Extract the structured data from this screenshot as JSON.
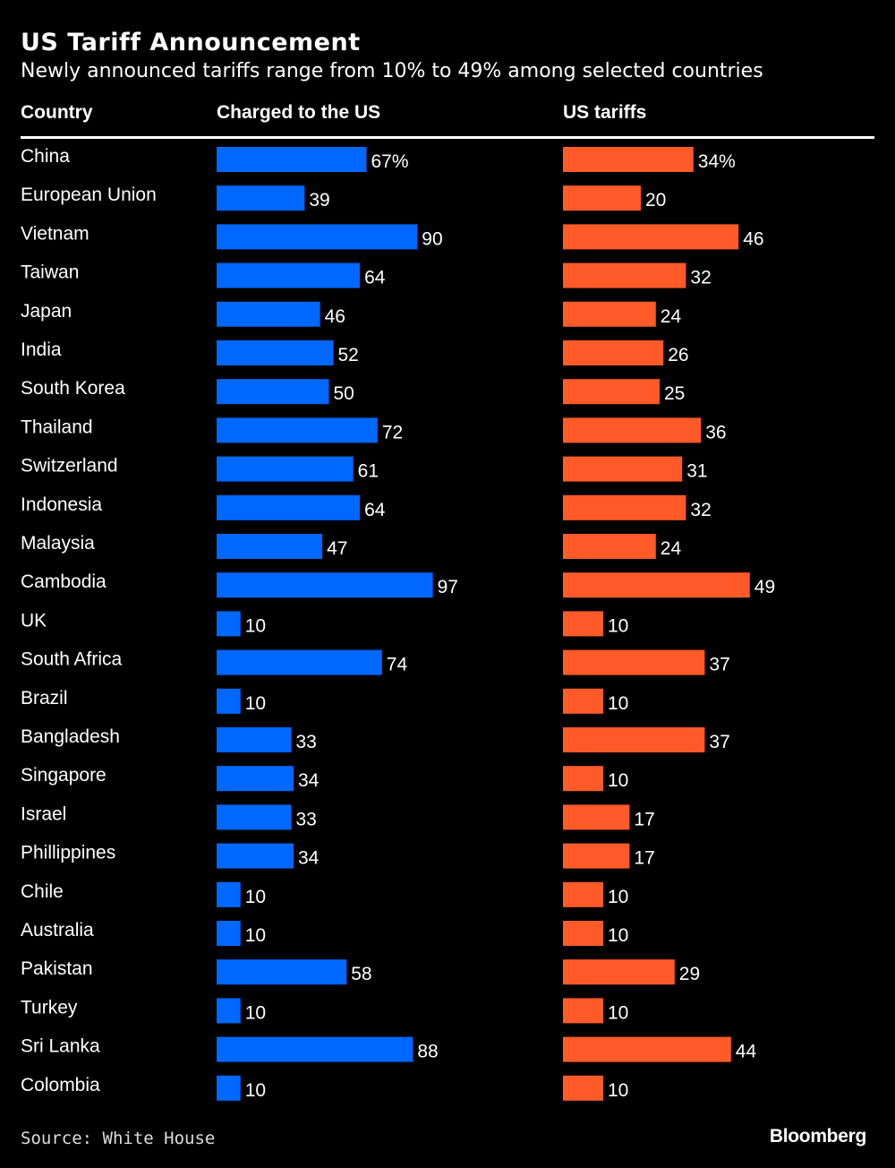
{
  "title": "US Tariff Announcement",
  "subtitle": "Newly announced tariffs range from 10% to 49% among selected countries",
  "source": "Source: White House",
  "logo": "Bloomberg",
  "chart_data": {
    "type": "bar",
    "orientation": "horizontal",
    "columns": {
      "category": "Country",
      "series1": "Charged to the US",
      "series2": "US tariffs"
    },
    "categories": [
      "China",
      "European Union",
      "Vietnam",
      "Taiwan",
      "Japan",
      "India",
      "South Korea",
      "Thailand",
      "Switzerland",
      "Indonesia",
      "Malaysia",
      "Cambodia",
      "UK",
      "South Africa",
      "Brazil",
      "Bangladesh",
      "Singapore",
      "Israel",
      "Phillippines",
      "Chile",
      "Australia",
      "Pakistan",
      "Turkey",
      "Sri Lanka",
      "Colombia"
    ],
    "series": [
      {
        "name": "Charged to the US",
        "color": "#0068ff",
        "values": [
          67,
          39,
          90,
          64,
          46,
          52,
          50,
          72,
          61,
          64,
          47,
          97,
          10,
          74,
          10,
          33,
          34,
          33,
          34,
          10,
          10,
          58,
          10,
          88,
          10
        ]
      },
      {
        "name": "US tariffs",
        "color": "#ff5a28",
        "values": [
          34,
          20,
          46,
          32,
          24,
          26,
          25,
          36,
          31,
          32,
          24,
          49,
          10,
          37,
          10,
          37,
          10,
          17,
          17,
          10,
          10,
          29,
          10,
          44,
          10
        ]
      }
    ],
    "unit_suffix_first_row": "%",
    "grid": false
  }
}
